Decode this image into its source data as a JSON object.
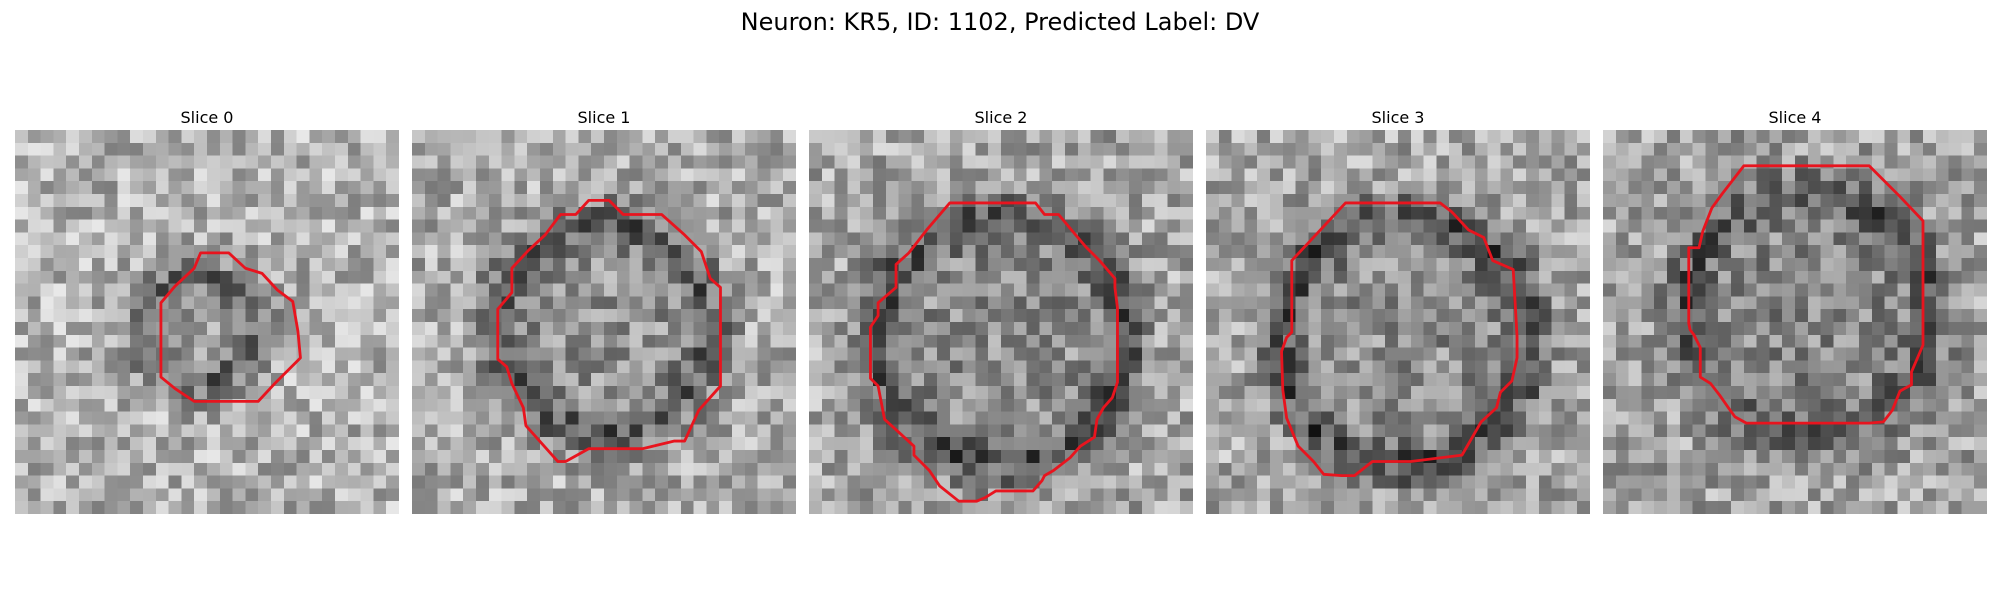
{
  "figure": {
    "title": "Neuron: KR5, ID: 1102, Predicted Label: DV"
  },
  "grid_cells": 30,
  "contour_color": "#e8141e",
  "slices": [
    {
      "title": "Slice 0",
      "blob": {
        "cx": 14.5,
        "cy": 15.5,
        "r": 4.5,
        "strength": 0.22
      },
      "base": 0.7,
      "contour": [
        [
          14.5,
          9.6
        ],
        [
          16.7,
          9.6
        ],
        [
          18,
          10.8
        ],
        [
          19.3,
          11.2
        ],
        [
          20.5,
          12.5
        ],
        [
          21.7,
          13.4
        ],
        [
          22.1,
          15.7
        ],
        [
          22.3,
          17.8
        ],
        [
          21.4,
          18.7
        ],
        [
          20.3,
          19.8
        ],
        [
          19,
          21.2
        ],
        [
          14,
          21.2
        ],
        [
          12.5,
          20.2
        ],
        [
          11.4,
          19.3
        ],
        [
          11.4,
          13.5
        ],
        [
          12.5,
          12.2
        ],
        [
          14,
          10.8
        ]
      ]
    },
    {
      "title": "Slice 1",
      "blob": {
        "cx": 15,
        "cy": 15.5,
        "r": 8.5,
        "strength": 0.26
      },
      "base": 0.68,
      "contour": [
        [
          13.8,
          5.5
        ],
        [
          15.4,
          5.5
        ],
        [
          16.5,
          6.6
        ],
        [
          19.5,
          6.6
        ],
        [
          21.3,
          8.2
        ],
        [
          22.6,
          9.5
        ],
        [
          23.3,
          11.6
        ],
        [
          24.1,
          12.3
        ],
        [
          24.1,
          20
        ],
        [
          22.4,
          21.9
        ],
        [
          21.3,
          24.3
        ],
        [
          20.5,
          24.3
        ],
        [
          18,
          24.9
        ],
        [
          13.8,
          24.9
        ],
        [
          12,
          25.9
        ],
        [
          11.4,
          25.9
        ],
        [
          8.9,
          23.1
        ],
        [
          8.7,
          21.7
        ],
        [
          7.8,
          19.8
        ],
        [
          7.4,
          18.5
        ],
        [
          6.7,
          17.9
        ],
        [
          6.7,
          14
        ],
        [
          7.8,
          12.7
        ],
        [
          7.8,
          10.8
        ],
        [
          9.1,
          9.4
        ],
        [
          10.4,
          8.2
        ],
        [
          11.6,
          6.6
        ],
        [
          12.8,
          6.6
        ]
      ]
    },
    {
      "title": "Slice 2",
      "blob": {
        "cx": 15,
        "cy": 16.5,
        "r": 10,
        "strength": 0.28
      },
      "base": 0.66,
      "contour": [
        [
          11,
          5.7
        ],
        [
          17.7,
          5.7
        ],
        [
          18.4,
          6.6
        ],
        [
          19.5,
          6.6
        ],
        [
          20.5,
          7.8
        ],
        [
          21.6,
          9.1
        ],
        [
          22.7,
          10.2
        ],
        [
          23.9,
          11.6
        ],
        [
          23.9,
          12.3
        ],
        [
          24.1,
          13.9
        ],
        [
          24.1,
          19.7
        ],
        [
          23.7,
          20.9
        ],
        [
          23,
          21.7
        ],
        [
          22.5,
          22.6
        ],
        [
          22.3,
          24
        ],
        [
          21.2,
          24.7
        ],
        [
          20.4,
          25.6
        ],
        [
          19.1,
          26.6
        ],
        [
          18.4,
          27
        ],
        [
          18.2,
          27.4
        ],
        [
          17.5,
          28.2
        ],
        [
          15,
          28.2
        ],
        [
          14.6,
          28.2
        ],
        [
          13.8,
          28.7
        ],
        [
          13.1,
          29
        ],
        [
          11.7,
          29
        ],
        [
          11.2,
          28.6
        ],
        [
          10.2,
          27.8
        ],
        [
          9.4,
          26.6
        ],
        [
          8.2,
          25.4
        ],
        [
          8.2,
          24.7
        ],
        [
          7,
          23.6
        ],
        [
          5.9,
          22.6
        ],
        [
          5.4,
          20
        ],
        [
          4.8,
          19.4
        ],
        [
          4.8,
          15.4
        ],
        [
          5.4,
          14.5
        ],
        [
          5.4,
          13.5
        ],
        [
          6.8,
          12.3
        ],
        [
          6.8,
          10.5
        ],
        [
          7.8,
          9.6
        ],
        [
          9.2,
          7.8
        ]
      ]
    },
    {
      "title": "Slice 3",
      "blob": {
        "cx": 15.5,
        "cy": 16.5,
        "r": 10,
        "strength": 0.3
      },
      "base": 0.66,
      "contour": [
        [
          10.9,
          5.7
        ],
        [
          18.3,
          5.7
        ],
        [
          19.2,
          6.4
        ],
        [
          19.3,
          6.5
        ],
        [
          20.5,
          7.8
        ],
        [
          21.7,
          8.4
        ],
        [
          22.4,
          10.2
        ],
        [
          24,
          10.9
        ],
        [
          24.3,
          16.1
        ],
        [
          24.3,
          17.8
        ],
        [
          23.9,
          19.6
        ],
        [
          23,
          20.5
        ],
        [
          22.7,
          21.7
        ],
        [
          21.5,
          22.8
        ],
        [
          20,
          25.4
        ],
        [
          16,
          25.9
        ],
        [
          13,
          25.9
        ],
        [
          11.6,
          27
        ],
        [
          10.6,
          27
        ],
        [
          9.2,
          26.9
        ],
        [
          8.4,
          25.9
        ],
        [
          7.2,
          24.7
        ],
        [
          6.3,
          22.5
        ],
        [
          6,
          20.3
        ],
        [
          5.9,
          17.3
        ],
        [
          6.3,
          16.2
        ],
        [
          6.7,
          15.8
        ],
        [
          6.7,
          10.2
        ],
        [
          8.2,
          8.6
        ]
      ]
    },
    {
      "title": "Slice 4",
      "blob": {
        "cx": 16,
        "cy": 14.5,
        "r": 10,
        "strength": 0.22
      },
      "base": 0.64,
      "contour": [
        [
          11,
          2.8
        ],
        [
          20.8,
          2.8
        ],
        [
          23.2,
          5.2
        ],
        [
          25,
          7.1
        ],
        [
          25,
          16.8
        ],
        [
          24.7,
          17.5
        ],
        [
          24.1,
          18.9
        ],
        [
          24.1,
          19.9
        ],
        [
          23.2,
          20.4
        ],
        [
          22.6,
          21.9
        ],
        [
          21.9,
          22.8
        ],
        [
          20.8,
          22.9
        ],
        [
          20.4,
          22.9
        ],
        [
          11.2,
          22.9
        ],
        [
          10.3,
          22.4
        ],
        [
          9.8,
          21.7
        ],
        [
          9.1,
          20.7
        ],
        [
          8.4,
          19.8
        ],
        [
          7.6,
          19.3
        ],
        [
          7.6,
          17
        ],
        [
          7.1,
          16
        ],
        [
          6.8,
          15.6
        ],
        [
          6.7,
          15.1
        ],
        [
          6.7,
          13
        ],
        [
          6.7,
          12.7
        ],
        [
          6.7,
          9.2
        ],
        [
          7.5,
          9.2
        ],
        [
          7.8,
          7.9
        ],
        [
          8.5,
          6.1
        ],
        [
          9.3,
          5
        ]
      ]
    }
  ]
}
